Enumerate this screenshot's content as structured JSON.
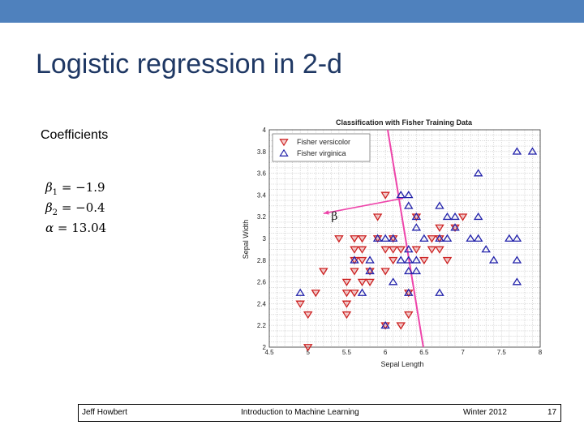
{
  "slide": {
    "title": "Logistic regression in 2-d",
    "coefficients_label": "Coefficients",
    "equations": [
      {
        "symbol": "β",
        "sub": "1",
        "expr": " = −1.9"
      },
      {
        "symbol": "β",
        "sub": "2",
        "expr": " = −0.4"
      },
      {
        "symbol": "α",
        "sub": "",
        "expr": " = 13.04"
      }
    ]
  },
  "footer": {
    "author": "Jeff Howbert",
    "course": "Introduction to Machine Learning",
    "term": "Winter 2012",
    "page": "17"
  },
  "colors": {
    "top_band": "#4f81bd",
    "versicolor": "#cc2222",
    "virginica": "#2222aa",
    "decision_line": "#ee44aa"
  },
  "chart_data": {
    "type": "scatter",
    "title": "Classification with Fisher Training Data",
    "xlabel": "Sepal Length",
    "ylabel": "Sepal Width",
    "xlim": [
      4.5,
      8
    ],
    "ylim": [
      2,
      4
    ],
    "xticks": [
      "4.5",
      "5",
      "5.5",
      "6",
      "6.5",
      "7",
      "7.5",
      "8"
    ],
    "yticks": [
      "2",
      "2.2",
      "2.4",
      "2.6",
      "2.8",
      "3",
      "3.2",
      "3.4",
      "3.6",
      "3.8",
      "4"
    ],
    "grid": true,
    "legend_position": "top-left",
    "annotation": "β",
    "decision_boundary": {
      "x1": 6.03,
      "y1": 4.0,
      "x2": 6.49,
      "y2": 2.0
    },
    "beta_arrow": {
      "x1": 6.23,
      "y1": 3.37,
      "x2": 5.2,
      "y2": 3.23
    },
    "series": [
      {
        "name": "Fisher versicolor",
        "marker": "triangle-down",
        "points": [
          [
            4.9,
            2.4
          ],
          [
            5.0,
            2.0
          ],
          [
            5.0,
            2.3
          ],
          [
            5.1,
            2.5
          ],
          [
            5.2,
            2.7
          ],
          [
            5.4,
            3.0
          ],
          [
            5.5,
            2.3
          ],
          [
            5.5,
            2.4
          ],
          [
            5.5,
            2.5
          ],
          [
            5.5,
            2.6
          ],
          [
            5.6,
            2.5
          ],
          [
            5.6,
            2.7
          ],
          [
            5.6,
            2.8
          ],
          [
            5.6,
            2.9
          ],
          [
            5.6,
            3.0
          ],
          [
            5.7,
            2.6
          ],
          [
            5.7,
            2.8
          ],
          [
            5.7,
            2.9
          ],
          [
            5.7,
            3.0
          ],
          [
            5.8,
            2.6
          ],
          [
            5.8,
            2.7
          ],
          [
            5.9,
            3.0
          ],
          [
            5.9,
            3.2
          ],
          [
            6.0,
            2.2
          ],
          [
            6.0,
            2.7
          ],
          [
            6.0,
            2.9
          ],
          [
            6.0,
            3.4
          ],
          [
            6.1,
            2.8
          ],
          [
            6.1,
            2.9
          ],
          [
            6.1,
            3.0
          ],
          [
            6.2,
            2.2
          ],
          [
            6.2,
            2.9
          ],
          [
            6.3,
            2.3
          ],
          [
            6.3,
            2.5
          ],
          [
            6.4,
            2.9
          ],
          [
            6.4,
            3.2
          ],
          [
            6.5,
            2.8
          ],
          [
            6.6,
            2.9
          ],
          [
            6.6,
            3.0
          ],
          [
            6.7,
            2.9
          ],
          [
            6.7,
            3.0
          ],
          [
            6.7,
            3.1
          ],
          [
            6.8,
            2.8
          ],
          [
            6.9,
            3.1
          ],
          [
            7.0,
            3.2
          ]
        ]
      },
      {
        "name": "Fisher virginica",
        "marker": "triangle-up",
        "points": [
          [
            4.9,
            2.5
          ],
          [
            5.6,
            2.8
          ],
          [
            5.7,
            2.5
          ],
          [
            5.8,
            2.7
          ],
          [
            5.8,
            2.8
          ],
          [
            5.9,
            3.0
          ],
          [
            6.0,
            2.2
          ],
          [
            6.0,
            3.0
          ],
          [
            6.1,
            2.6
          ],
          [
            6.1,
            3.0
          ],
          [
            6.2,
            2.8
          ],
          [
            6.2,
            3.4
          ],
          [
            6.3,
            2.5
          ],
          [
            6.3,
            2.7
          ],
          [
            6.3,
            2.8
          ],
          [
            6.3,
            2.9
          ],
          [
            6.3,
            3.3
          ],
          [
            6.3,
            3.4
          ],
          [
            6.4,
            2.7
          ],
          [
            6.4,
            2.8
          ],
          [
            6.4,
            3.1
          ],
          [
            6.4,
            3.2
          ],
          [
            6.5,
            3.0
          ],
          [
            6.7,
            2.5
          ],
          [
            6.7,
            3.0
          ],
          [
            6.7,
            3.3
          ],
          [
            6.8,
            3.0
          ],
          [
            6.8,
            3.2
          ],
          [
            6.9,
            3.1
          ],
          [
            6.9,
            3.2
          ],
          [
            7.1,
            3.0
          ],
          [
            7.2,
            3.0
          ],
          [
            7.2,
            3.2
          ],
          [
            7.2,
            3.6
          ],
          [
            7.3,
            2.9
          ],
          [
            7.4,
            2.8
          ],
          [
            7.6,
            3.0
          ],
          [
            7.7,
            2.6
          ],
          [
            7.7,
            2.8
          ],
          [
            7.7,
            3.0
          ],
          [
            7.7,
            3.8
          ],
          [
            7.9,
            3.8
          ]
        ]
      }
    ]
  }
}
